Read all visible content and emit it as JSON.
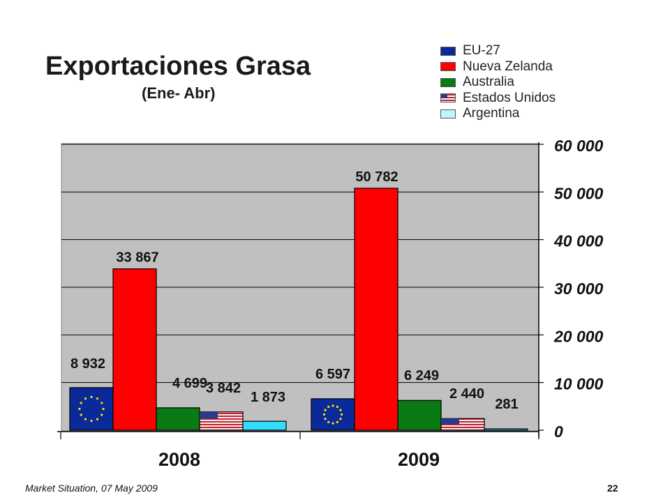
{
  "slide": {
    "title": "Exportaciones Grasa",
    "subtitle": "(Ene- Abr)",
    "footer_left": "Market Situation, 07 May 2009",
    "page_number": "22"
  },
  "colors": {
    "plot_background": "#c0c0c0",
    "gridline": "#000000",
    "eu": "#0a2a9a",
    "nz": "#ff0000",
    "au": "#0a7a14",
    "us": "#c8202c",
    "ar": "#33dcff"
  },
  "legend": [
    {
      "label": "EU-27",
      "color": "#0a2a9a",
      "icon": "eu-flag-icon"
    },
    {
      "label": "Nueva Zelanda",
      "color": "#ff0000",
      "icon": "red-swatch"
    },
    {
      "label": "Australia",
      "color": "#0a7a14",
      "icon": "green-swatch"
    },
    {
      "label": "Estados Unidos",
      "color": "#c8202c",
      "icon": "us-flag-icon"
    },
    {
      "label": "Argentina",
      "color": "#bff3ff",
      "icon": "light-blue-swatch"
    }
  ],
  "chart_data": {
    "type": "bar",
    "categories": [
      "2008",
      "2009"
    ],
    "series": [
      {
        "name": "EU-27",
        "values": [
          8932,
          6597
        ],
        "labels": [
          "8 932",
          "6 597"
        ]
      },
      {
        "name": "Nueva Zelanda",
        "values": [
          33867,
          50782
        ],
        "labels": [
          "33 867",
          "50 782"
        ]
      },
      {
        "name": "Australia",
        "values": [
          4699,
          6249
        ],
        "labels": [
          "4 699",
          "6 249"
        ]
      },
      {
        "name": "Estados Unidos",
        "values": [
          3842,
          2440
        ],
        "labels": [
          "3 842",
          "2 440"
        ]
      },
      {
        "name": "Argentina",
        "values": [
          1873,
          281
        ],
        "labels": [
          "1 873",
          "281"
        ]
      }
    ],
    "ylim": [
      0,
      60000
    ],
    "yticks": [
      0,
      10000,
      20000,
      30000,
      40000,
      50000,
      60000
    ],
    "ytick_labels": [
      "0",
      "10 000",
      "20 000",
      "30 000",
      "40 000",
      "50 000",
      "60 000"
    ],
    "y_axis_side": "right",
    "grid": true,
    "legend_position": "top-right"
  }
}
